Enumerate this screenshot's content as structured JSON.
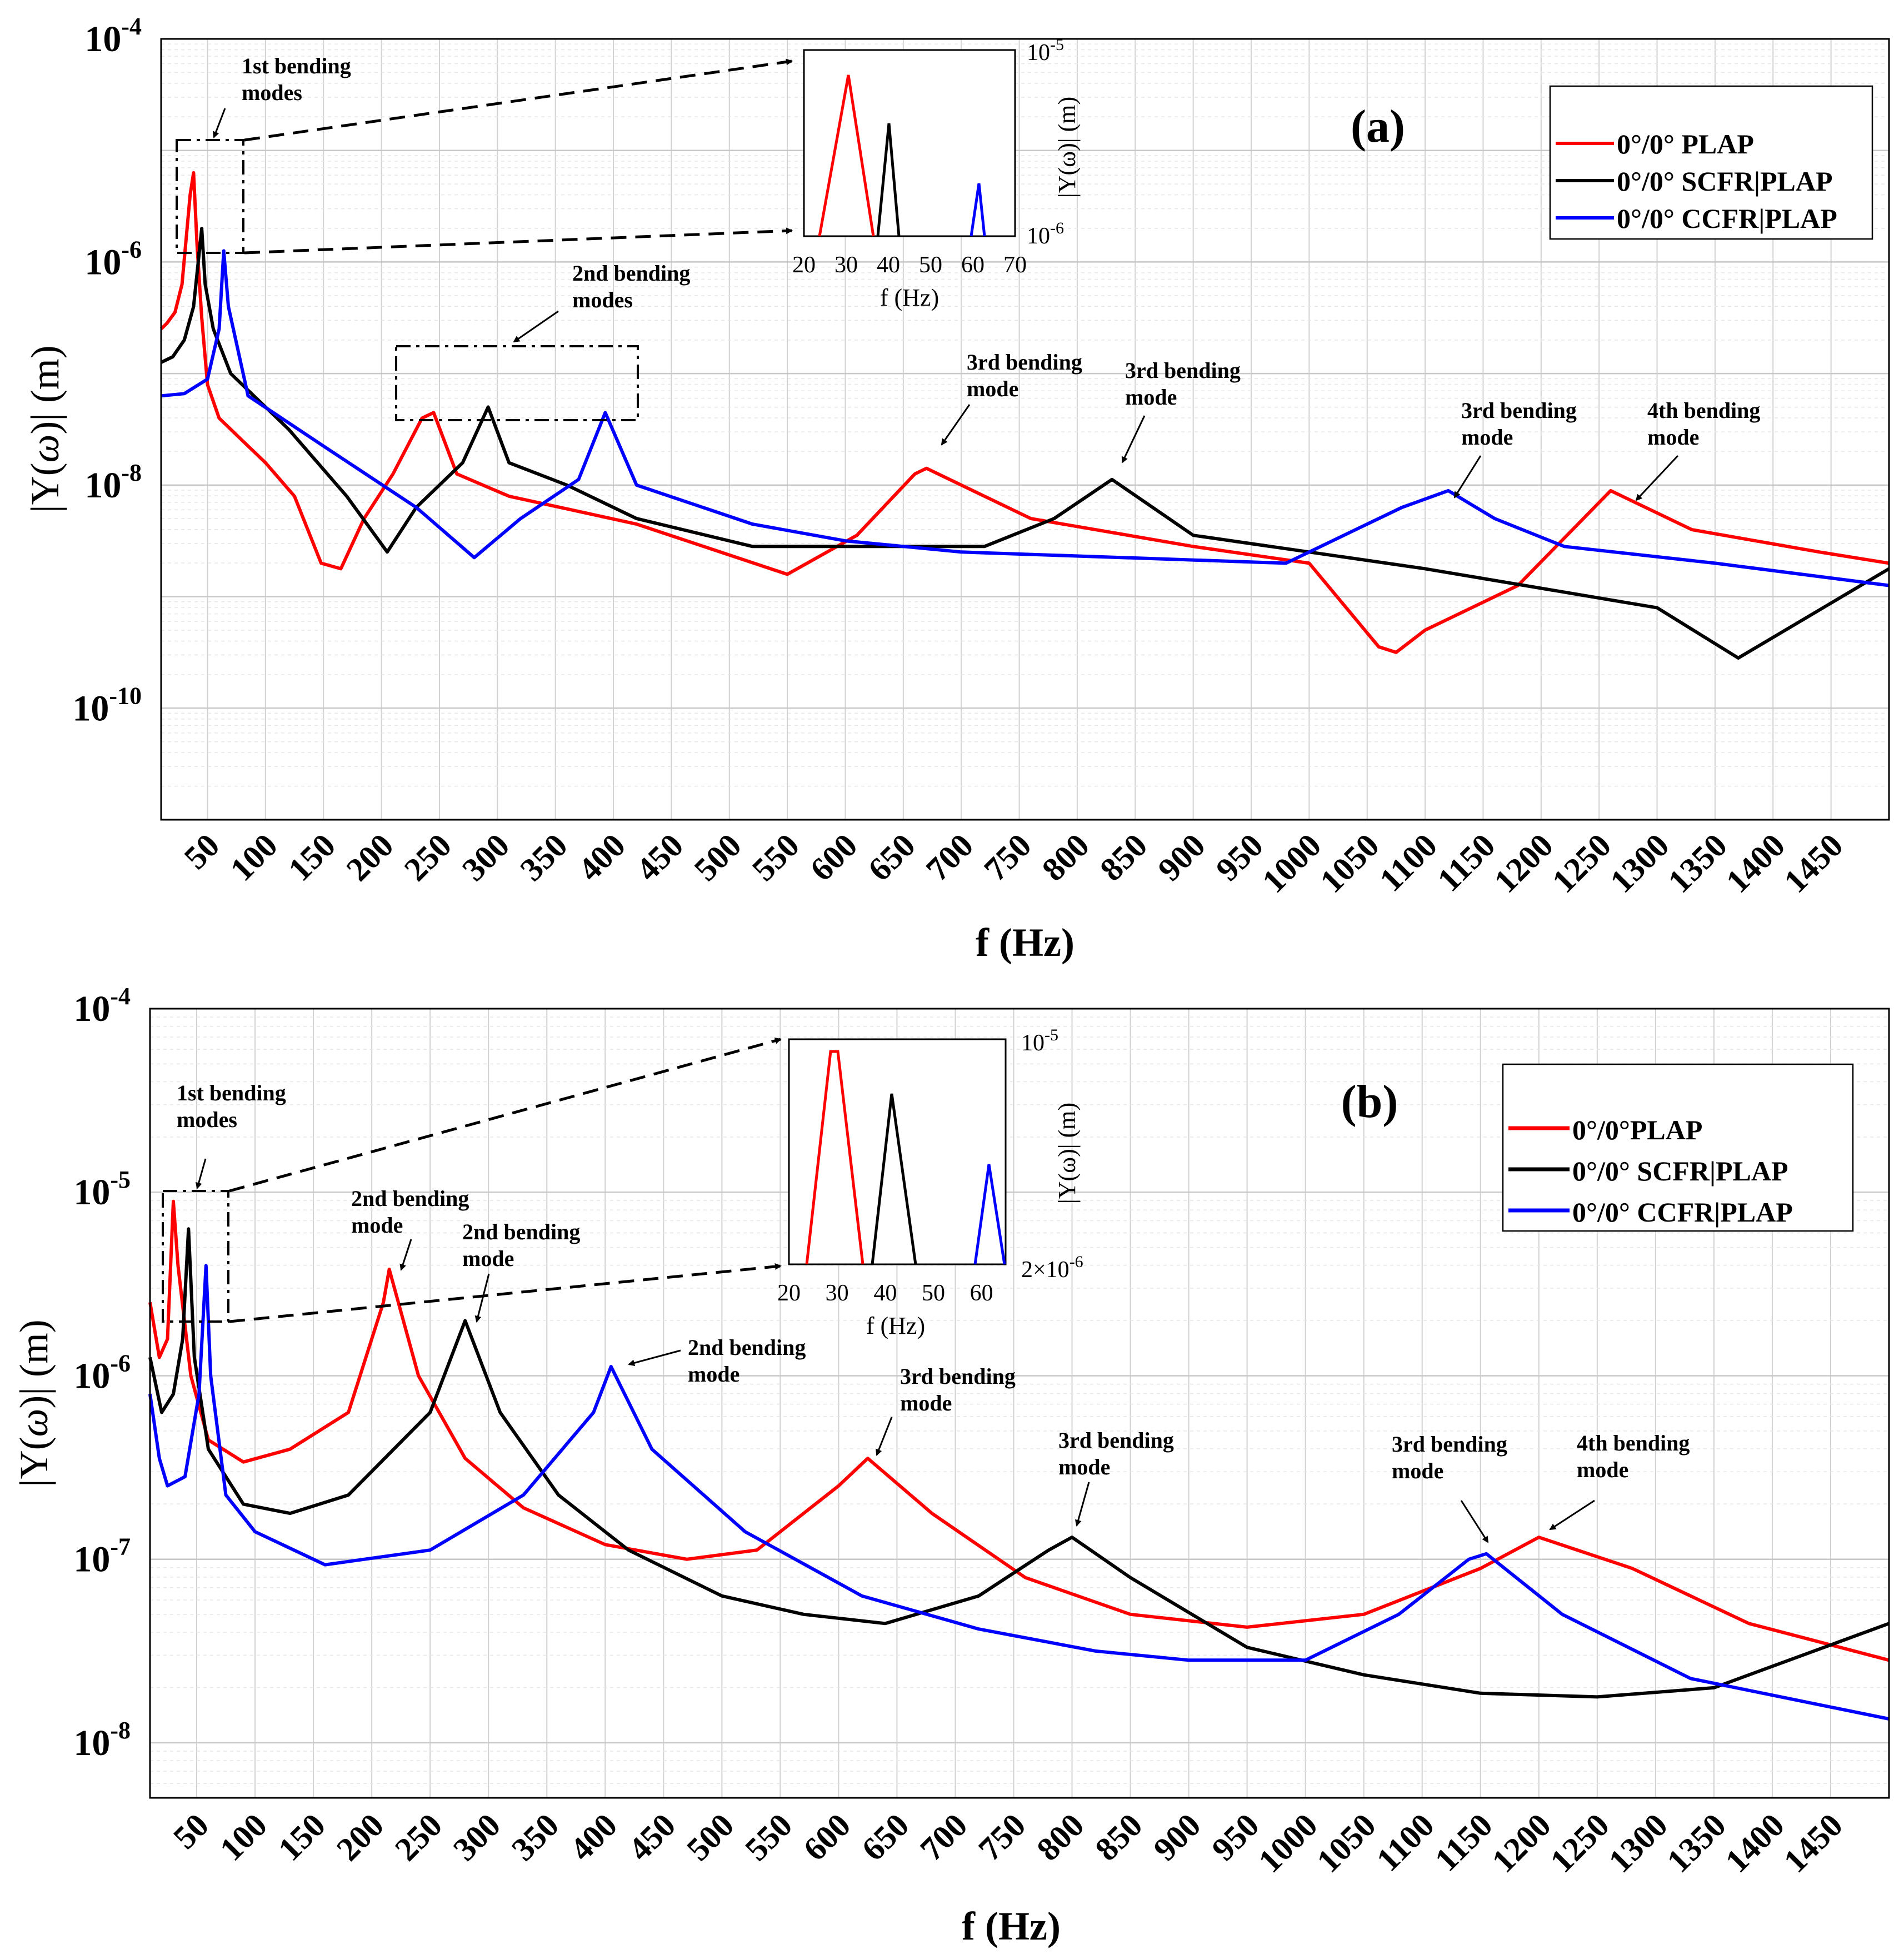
{
  "chart_data": [
    {
      "type": "line",
      "panel_label": "(a)",
      "xlabel": "f (Hz)",
      "ylabel": "|Y(ω)| (m)",
      "ylabel_main": "|Y(",
      "ylabel_omega": "ω",
      "ylabel_end": ")| (m)",
      "xlim": [
        10,
        1500
      ],
      "ylim_exp": [
        -11,
        -4
      ],
      "y_scale": "log",
      "xticks": [
        "50",
        "100",
        "150",
        "200",
        "250",
        "300",
        "350",
        "400",
        "450",
        "500",
        "550",
        "600",
        "650",
        "700",
        "750",
        "800",
        "850",
        "900",
        "950",
        "1000",
        "1050",
        "1100",
        "1150",
        "1200",
        "1250",
        "1300",
        "1350",
        "1400",
        "1450"
      ],
      "yticks": [
        {
          "base": "10",
          "exp": "-10",
          "e": -10
        },
        {
          "base": "10",
          "exp": "-8",
          "e": -8
        },
        {
          "base": "10",
          "exp": "-6",
          "e": -6
        },
        {
          "base": "10",
          "exp": "-4",
          "e": -4
        }
      ],
      "grid": true,
      "legend_position": "top-right",
      "series": [
        {
          "name": "0°/0° PLAP",
          "color": "#ff0000",
          "points": [
            [
              10,
              -6.6
            ],
            [
              15,
              -6.55
            ],
            [
              22,
              -6.45
            ],
            [
              28,
              -6.2
            ],
            [
              35,
              -5.4
            ],
            [
              38,
              -5.2
            ],
            [
              41,
              -5.85
            ],
            [
              45,
              -6.5
            ],
            [
              50,
              -7.1
            ],
            [
              60,
              -7.4
            ],
            [
              80,
              -7.6
            ],
            [
              100,
              -7.8
            ],
            [
              125,
              -8.1
            ],
            [
              148,
              -8.7
            ],
            [
              165,
              -8.75
            ],
            [
              185,
              -8.3
            ],
            [
              210,
              -7.9
            ],
            [
              235,
              -7.4
            ],
            [
              245,
              -7.35
            ],
            [
              265,
              -7.9
            ],
            [
              310,
              -8.1
            ],
            [
              420,
              -8.35
            ],
            [
              550,
              -8.8
            ],
            [
              610,
              -8.45
            ],
            [
              660,
              -7.9
            ],
            [
              670,
              -7.85
            ],
            [
              760,
              -8.3
            ],
            [
              900,
              -8.55
            ],
            [
              1000,
              -8.7
            ],
            [
              1060,
              -9.45
            ],
            [
              1075,
              -9.5
            ],
            [
              1100,
              -9.3
            ],
            [
              1180,
              -8.9
            ],
            [
              1260,
              -8.05
            ],
            [
              1270,
              -8.1
            ],
            [
              1330,
              -8.4
            ],
            [
              1440,
              -8.6
            ],
            [
              1500,
              -8.7
            ]
          ]
        },
        {
          "name": "0°/0° SCFR|PLAP",
          "color": "#000000",
          "points": [
            [
              10,
              -6.9
            ],
            [
              20,
              -6.85
            ],
            [
              30,
              -6.7
            ],
            [
              38,
              -6.4
            ],
            [
              45,
              -5.7
            ],
            [
              48,
              -6.2
            ],
            [
              55,
              -6.6
            ],
            [
              70,
              -7.0
            ],
            [
              120,
              -7.5
            ],
            [
              170,
              -8.1
            ],
            [
              205,
              -8.6
            ],
            [
              230,
              -8.2
            ],
            [
              270,
              -7.8
            ],
            [
              292,
              -7.3
            ],
            [
              310,
              -7.8
            ],
            [
              360,
              -8.0
            ],
            [
              420,
              -8.3
            ],
            [
              520,
              -8.55
            ],
            [
              720,
              -8.55
            ],
            [
              780,
              -8.3
            ],
            [
              830,
              -7.95
            ],
            [
              900,
              -8.45
            ],
            [
              1100,
              -8.75
            ],
            [
              1300,
              -9.1
            ],
            [
              1370,
              -9.55
            ],
            [
              1500,
              -8.75
            ]
          ]
        },
        {
          "name": "0°/0° CCFR|PLAP",
          "color": "#0000ff",
          "points": [
            [
              10,
              -7.2
            ],
            [
              30,
              -7.18
            ],
            [
              50,
              -7.05
            ],
            [
              60,
              -6.6
            ],
            [
              64,
              -5.9
            ],
            [
              68,
              -6.4
            ],
            [
              85,
              -7.2
            ],
            [
              150,
              -7.65
            ],
            [
              230,
              -8.2
            ],
            [
              280,
              -8.65
            ],
            [
              320,
              -8.3
            ],
            [
              370,
              -7.95
            ],
            [
              393,
              -7.35
            ],
            [
              420,
              -8.0
            ],
            [
              520,
              -8.35
            ],
            [
              600,
              -8.5
            ],
            [
              700,
              -8.6
            ],
            [
              980,
              -8.7
            ],
            [
              1040,
              -8.4
            ],
            [
              1080,
              -8.2
            ],
            [
              1120,
              -8.05
            ],
            [
              1160,
              -8.3
            ],
            [
              1220,
              -8.55
            ],
            [
              1350,
              -8.7
            ],
            [
              1500,
              -8.9
            ]
          ]
        }
      ],
      "inset": {
        "xticks": [
          "20",
          "30",
          "40",
          "50",
          "60",
          "70"
        ],
        "xlabel": "f (Hz)",
        "ylabel": "|Y(ω)| (m)",
        "ylabel_text": "|Y(ω)| (m)",
        "ytick_top": {
          "base": "10",
          "exp": "-5"
        },
        "ytick_bottom": {
          "base": "10",
          "exp": "-6"
        }
      },
      "annotations": [
        {
          "line1": "1st bending",
          "line2": "modes"
        },
        {
          "line1": "2nd bending",
          "line2": "modes"
        },
        {
          "line1": "3rd bending",
          "line2": "mode"
        },
        {
          "line1": "3rd bending",
          "line2": "mode"
        },
        {
          "line1": "3rd bending",
          "line2": "mode"
        },
        {
          "line1": "4th bending",
          "line2": "mode"
        }
      ]
    },
    {
      "type": "line",
      "panel_label": "(b)",
      "xlabel": "f (Hz)",
      "ylabel": "|Y(ω)| (m)",
      "ylabel_main": "|Y(",
      "ylabel_omega": "ω",
      "ylabel_end": ")| (m)",
      "xlim": [
        10,
        1500
      ],
      "ylim_exp": [
        -8.3,
        -4
      ],
      "y_scale": "log",
      "xticks": [
        "50",
        "100",
        "150",
        "200",
        "250",
        "300",
        "350",
        "400",
        "450",
        "500",
        "550",
        "600",
        "650",
        "700",
        "750",
        "800",
        "850",
        "900",
        "950",
        "1000",
        "1050",
        "1100",
        "1150",
        "1200",
        "1250",
        "1300",
        "1350",
        "1400",
        "1450"
      ],
      "yticks": [
        {
          "base": "10",
          "exp": "-8",
          "e": -8
        },
        {
          "base": "10",
          "exp": "-7",
          "e": -7
        },
        {
          "base": "10",
          "exp": "-6",
          "e": -6
        },
        {
          "base": "10",
          "exp": "-5",
          "e": -5
        },
        {
          "base": "10",
          "exp": "-4",
          "e": -4
        }
      ],
      "grid": true,
      "legend_position": "top-right",
      "series": [
        {
          "name": "0°/0°PLAP",
          "color": "#ff0000",
          "points": [
            [
              10,
              -5.6
            ],
            [
              18,
              -5.9
            ],
            [
              25,
              -5.8
            ],
            [
              30,
              -5.05
            ],
            [
              34,
              -5.4
            ],
            [
              45,
              -6.0
            ],
            [
              60,
              -6.35
            ],
            [
              90,
              -6.47
            ],
            [
              130,
              -6.4
            ],
            [
              180,
              -6.2
            ],
            [
              210,
              -5.6
            ],
            [
              215,
              -5.42
            ],
            [
              240,
              -6.0
            ],
            [
              280,
              -6.45
            ],
            [
              330,
              -6.72
            ],
            [
              400,
              -6.92
            ],
            [
              470,
              -7.0
            ],
            [
              530,
              -6.95
            ],
            [
              600,
              -6.6
            ],
            [
              625,
              -6.45
            ],
            [
              680,
              -6.75
            ],
            [
              760,
              -7.1
            ],
            [
              850,
              -7.3
            ],
            [
              950,
              -7.37
            ],
            [
              1050,
              -7.3
            ],
            [
              1150,
              -7.05
            ],
            [
              1200,
              -6.88
            ],
            [
              1280,
              -7.05
            ],
            [
              1380,
              -7.35
            ],
            [
              1500,
              -7.55
            ]
          ]
        },
        {
          "name": "0°/0° SCFR|PLAP",
          "color": "#000000",
          "points": [
            [
              10,
              -5.9
            ],
            [
              20,
              -6.2
            ],
            [
              30,
              -6.1
            ],
            [
              38,
              -5.8
            ],
            [
              43,
              -5.2
            ],
            [
              48,
              -5.9
            ],
            [
              60,
              -6.4
            ],
            [
              90,
              -6.7
            ],
            [
              130,
              -6.75
            ],
            [
              180,
              -6.65
            ],
            [
              250,
              -6.2
            ],
            [
              280,
              -5.7
            ],
            [
              310,
              -6.2
            ],
            [
              360,
              -6.65
            ],
            [
              420,
              -6.95
            ],
            [
              500,
              -7.2
            ],
            [
              570,
              -7.3
            ],
            [
              640,
              -7.35
            ],
            [
              720,
              -7.2
            ],
            [
              780,
              -6.95
            ],
            [
              800,
              -6.88
            ],
            [
              850,
              -7.1
            ],
            [
              950,
              -7.48
            ],
            [
              1050,
              -7.63
            ],
            [
              1150,
              -7.73
            ],
            [
              1250,
              -7.75
            ],
            [
              1350,
              -7.7
            ],
            [
              1500,
              -7.35
            ]
          ]
        },
        {
          "name": "0°/0° CCFR|PLAP",
          "color": "#0000ff",
          "points": [
            [
              10,
              -6.1
            ],
            [
              18,
              -6.45
            ],
            [
              25,
              -6.6
            ],
            [
              40,
              -6.55
            ],
            [
              52,
              -6.1
            ],
            [
              58,
              -5.4
            ],
            [
              62,
              -6.0
            ],
            [
              75,
              -6.65
            ],
            [
              100,
              -6.85
            ],
            [
              160,
              -7.03
            ],
            [
              250,
              -6.95
            ],
            [
              330,
              -6.65
            ],
            [
              390,
              -6.2
            ],
            [
              405,
              -5.95
            ],
            [
              440,
              -6.4
            ],
            [
              520,
              -6.85
            ],
            [
              620,
              -7.2
            ],
            [
              720,
              -7.38
            ],
            [
              820,
              -7.5
            ],
            [
              900,
              -7.55
            ],
            [
              1000,
              -7.55
            ],
            [
              1080,
              -7.3
            ],
            [
              1140,
              -7.0
            ],
            [
              1155,
              -6.97
            ],
            [
              1220,
              -7.3
            ],
            [
              1330,
              -7.65
            ],
            [
              1500,
              -7.87
            ]
          ]
        }
      ],
      "inset": {
        "xticks": [
          "20",
          "30",
          "40",
          "50",
          "60"
        ],
        "xlabel": "f (Hz)",
        "ylabel": "|Y(ω)| (m)",
        "ylabel_text": "|Y(ω)| (m)",
        "ytick_top": {
          "base": "10",
          "exp": "-5"
        },
        "ytick_bottom": {
          "base": "2×10",
          "exp": "-6"
        }
      },
      "annotations": [
        {
          "line1": "1st bending",
          "line2": "modes"
        },
        {
          "line1": "2nd bending",
          "line2": "mode"
        },
        {
          "line1": "2nd bending",
          "line2": "mode"
        },
        {
          "line1": "2nd bending",
          "line2": "mode"
        },
        {
          "line1": "3rd bending",
          "line2": "mode"
        },
        {
          "line1": "3rd bending",
          "line2": "mode"
        },
        {
          "line1": "3rd bending",
          "line2": "mode"
        },
        {
          "line1": "4th bending",
          "line2": "mode"
        }
      ]
    }
  ]
}
